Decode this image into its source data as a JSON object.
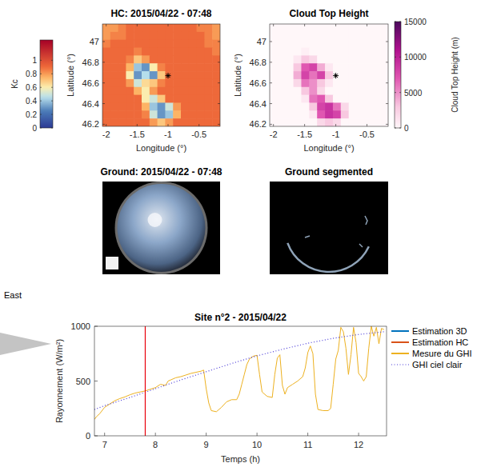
{
  "chart_data": [
    {
      "type": "heatmap",
      "title": "HC: 2015/04/22 - 07:48",
      "x_label": "Longitude (°)",
      "y_label": "Latitude (°)",
      "xlim": [
        -2.06,
        -0.16
      ],
      "ylim": [
        46.18,
        47.17
      ],
      "xticks": [
        -2,
        -1.5,
        -1,
        -0.5
      ],
      "yticks": [
        46.2,
        46.4,
        46.6,
        46.8,
        47
      ],
      "cells": [
        [
          0.8,
          0.8,
          0.85,
          0.9,
          0.9,
          0.9,
          0.9,
          0.9,
          0.9,
          0.9,
          0.9,
          0.9,
          0.85,
          0.85,
          0.8
        ],
        [
          0.8,
          0.85,
          0.85,
          0.9,
          0.9,
          0.9,
          0.9,
          0.9,
          0.9,
          0.9,
          0.9,
          0.9,
          0.9,
          0.85,
          0.8
        ],
        [
          0.85,
          0.9,
          0.9,
          0.9,
          0.9,
          0.9,
          0.9,
          0.9,
          0.9,
          0.9,
          0.9,
          0.9,
          0.9,
          0.85,
          0.85
        ],
        [
          0.9,
          0.9,
          0.9,
          0.9,
          0.85,
          0.9,
          0.9,
          0.9,
          0.9,
          0.9,
          0.9,
          0.9,
          0.9,
          0.9,
          0.85
        ],
        [
          0.9,
          0.9,
          0.9,
          0.85,
          0.7,
          0.8,
          0.9,
          0.9,
          0.9,
          0.9,
          0.9,
          0.9,
          0.9,
          0.9,
          0.9
        ],
        [
          0.9,
          0.9,
          0.9,
          0.75,
          0.4,
          0.3,
          0.6,
          0.85,
          0.9,
          0.9,
          0.9,
          0.9,
          0.9,
          0.9,
          0.9
        ],
        [
          0.9,
          0.9,
          0.9,
          0.6,
          0.3,
          0.45,
          0.3,
          0.7,
          0.9,
          0.9,
          0.9,
          0.9,
          0.9,
          0.9,
          0.9
        ],
        [
          0.9,
          0.9,
          0.9,
          0.8,
          0.5,
          0.65,
          0.7,
          0.85,
          0.9,
          0.9,
          0.9,
          0.9,
          0.9,
          0.9,
          0.9
        ],
        [
          0.9,
          0.9,
          0.9,
          0.9,
          0.75,
          0.6,
          0.8,
          0.9,
          0.9,
          0.9,
          0.9,
          0.9,
          0.9,
          0.9,
          0.9
        ],
        [
          0.9,
          0.9,
          0.9,
          0.9,
          0.9,
          0.6,
          0.5,
          0.7,
          0.9,
          0.9,
          0.9,
          0.9,
          0.9,
          0.9,
          0.9
        ],
        [
          0.9,
          0.9,
          0.9,
          0.9,
          0.9,
          0.75,
          0.4,
          0.3,
          0.5,
          0.8,
          0.9,
          0.9,
          0.9,
          0.9,
          0.9
        ],
        [
          0.9,
          0.9,
          0.9,
          0.9,
          0.9,
          0.85,
          0.5,
          0.3,
          0.4,
          0.75,
          0.9,
          0.9,
          0.9,
          0.9,
          0.9
        ],
        [
          0.9,
          0.9,
          0.9,
          0.9,
          0.9,
          0.9,
          0.8,
          0.7,
          0.8,
          0.9,
          0.9,
          0.9,
          0.9,
          0.9,
          0.9
        ]
      ],
      "colorbar": {
        "label": "Kc",
        "range": [
          0,
          1.3
        ],
        "ticks": [
          0,
          0.2,
          0.4,
          0.6,
          0.8,
          1
        ]
      },
      "markers": [
        {
          "x": -1,
          "y": 46.67
        }
      ]
    },
    {
      "type": "heatmap",
      "title": "Cloud Top Height",
      "x_label": "Longitude (°)",
      "y_label": "Latitude (°)",
      "xlim": [
        -2.06,
        -0.16
      ],
      "ylim": [
        46.18,
        47.17
      ],
      "xticks": [
        -2,
        -1.5,
        -1,
        -0.5
      ],
      "yticks": [
        46.2,
        46.4,
        46.6,
        46.8,
        47
      ],
      "cells": [
        [
          0,
          0,
          0,
          0,
          0,
          0,
          0,
          0,
          0,
          0,
          0,
          0,
          0,
          0,
          0
        ],
        [
          0,
          0,
          0,
          0,
          0,
          0,
          0,
          0,
          0,
          0,
          0,
          0,
          0,
          0,
          0
        ],
        [
          0,
          0,
          0,
          0,
          0,
          0,
          0,
          0,
          0,
          0,
          0,
          0,
          0,
          0,
          0
        ],
        [
          0,
          0,
          0,
          0,
          500,
          0,
          0,
          0,
          0,
          0,
          0,
          0,
          0,
          0,
          0
        ],
        [
          0,
          0,
          0,
          1000,
          3000,
          2000,
          0,
          0,
          0,
          0,
          0,
          0,
          0,
          0,
          0
        ],
        [
          0,
          0,
          0,
          3000,
          7000,
          8000,
          4000,
          1000,
          0,
          0,
          0,
          0,
          0,
          0,
          0
        ],
        [
          0,
          0,
          0,
          4000,
          8000,
          6000,
          8000,
          3000,
          0,
          0,
          0,
          0,
          0,
          0,
          0
        ],
        [
          0,
          0,
          0,
          2000,
          6000,
          5000,
          3000,
          1000,
          0,
          0,
          0,
          0,
          0,
          0,
          0
        ],
        [
          0,
          0,
          0,
          0,
          3000,
          5000,
          2000,
          0,
          0,
          0,
          0,
          0,
          0,
          0,
          0
        ],
        [
          0,
          0,
          0,
          0,
          1000,
          6000,
          7000,
          3000,
          0,
          0,
          0,
          0,
          0,
          0,
          0
        ],
        [
          0,
          0,
          0,
          0,
          0,
          3000,
          8000,
          9000,
          6000,
          2000,
          0,
          0,
          0,
          0,
          0
        ],
        [
          0,
          0,
          0,
          0,
          0,
          1000,
          7000,
          9000,
          8000,
          3000,
          0,
          0,
          0,
          0,
          0
        ],
        [
          0,
          0,
          0,
          0,
          0,
          0,
          2000,
          3000,
          2000,
          0,
          0,
          0,
          0,
          0,
          0
        ]
      ],
      "colorbar": {
        "label": "Cloud Top Height (m)",
        "range": [
          0,
          15000
        ],
        "ticks": [
          0,
          5000,
          10000,
          15000
        ]
      },
      "markers": [
        {
          "x": -1,
          "y": 46.67
        }
      ]
    },
    {
      "type": "line",
      "title": "Site n°2 - 2015/04/22",
      "x_label": "Temps (h)",
      "y_label": "Rayonnement (W/m²)",
      "xlim": [
        6.8,
        12.55
      ],
      "ylim": [
        0,
        1000
      ],
      "xticks": [
        7,
        8,
        9,
        10,
        11,
        12
      ],
      "yticks": [
        0,
        500,
        1000
      ],
      "legend": "right",
      "time_cursor": {
        "x": 7.8,
        "color": "#e8000b"
      },
      "series": [
        {
          "name": "Estimation 3D",
          "color": "#0072bd",
          "line_style": "solid",
          "x": [],
          "values": []
        },
        {
          "name": "Estimation HC",
          "color": "#d95319",
          "line_style": "solid",
          "x": [],
          "values": []
        },
        {
          "name": "Mesure du GHI",
          "color": "#edb120",
          "line_style": "solid",
          "x": [
            6.8,
            6.85,
            6.9,
            7.0,
            7.1,
            7.2,
            7.3,
            7.4,
            7.5,
            7.6,
            7.7,
            7.8,
            7.9,
            8.0,
            8.1,
            8.2,
            8.25,
            8.3,
            8.4,
            8.5,
            8.6,
            8.7,
            8.8,
            8.9,
            8.95,
            9.0,
            9.05,
            9.1,
            9.2,
            9.3,
            9.4,
            9.5,
            9.6,
            9.65,
            9.7,
            9.75,
            9.8,
            9.85,
            9.9,
            9.95,
            10.0,
            10.05,
            10.1,
            10.2,
            10.3,
            10.35,
            10.4,
            10.45,
            10.5,
            10.55,
            10.6,
            10.7,
            10.8,
            10.9,
            10.95,
            11.0,
            11.05,
            11.1,
            11.15,
            11.2,
            11.3,
            11.4,
            11.45,
            11.5,
            11.55,
            11.6,
            11.65,
            11.7,
            11.75,
            11.8,
            11.85,
            11.9,
            11.95,
            12.0,
            12.05,
            12.1,
            12.15,
            12.2,
            12.25,
            12.3,
            12.35,
            12.4,
            12.45,
            12.5
          ],
          "values": [
            150,
            180,
            200,
            260,
            290,
            320,
            340,
            355,
            375,
            390,
            400,
            410,
            425,
            440,
            470,
            460,
            500,
            510,
            530,
            540,
            555,
            570,
            580,
            590,
            600,
            430,
            300,
            230,
            220,
            260,
            310,
            330,
            330,
            380,
            470,
            560,
            650,
            700,
            720,
            730,
            735,
            560,
            400,
            360,
            350,
            560,
            710,
            740,
            460,
            380,
            440,
            470,
            500,
            540,
            620,
            760,
            820,
            750,
            380,
            240,
            230,
            230,
            250,
            470,
            700,
            780,
            990,
            950,
            800,
            560,
            740,
            990,
            850,
            570,
            540,
            500,
            540,
            800,
            1000,
            910,
            990,
            840,
            980,
            970
          ]
        },
        {
          "name": "GHI ciel clair",
          "color": "#4b3cd8",
          "line_style": "dotted",
          "x": [
            6.8,
            7,
            7.5,
            8,
            8.5,
            9,
            9.5,
            10,
            10.5,
            11,
            11.5,
            12,
            12.5
          ],
          "values": [
            240,
            275,
            350,
            430,
            510,
            585,
            660,
            730,
            790,
            845,
            890,
            925,
            950
          ]
        }
      ]
    }
  ],
  "images": [
    {
      "title": "Ground: 2015/04/22 - 07:48"
    },
    {
      "title": "Ground segmented"
    }
  ],
  "caption": "East"
}
